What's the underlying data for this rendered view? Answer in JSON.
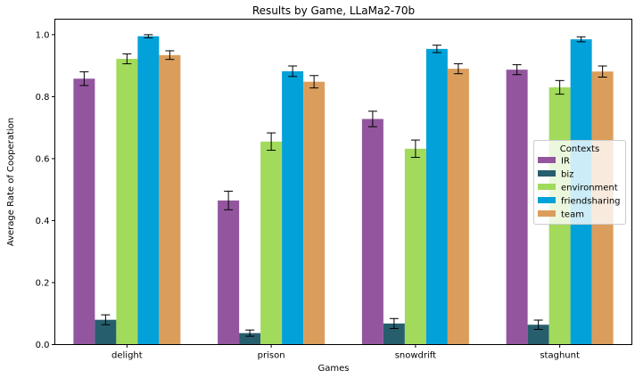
{
  "chart_data": {
    "type": "bar",
    "title": "Results by Game, LLaMa2-70b",
    "xlabel": "Games",
    "ylabel": "Average Rate of Cooperation",
    "ylim": [
      0,
      1.05
    ],
    "yticks": [
      0.0,
      0.2,
      0.4,
      0.6,
      0.8,
      1.0
    ],
    "ytick_labels": [
      "0.0",
      "0.2",
      "0.4",
      "0.6",
      "0.8",
      "1.0"
    ],
    "categories": [
      "delight",
      "prison",
      "snowdrift",
      "staghunt"
    ],
    "grid": false,
    "legend": {
      "title": "Contexts",
      "placement": "center-right"
    },
    "series": [
      {
        "name": "IR",
        "color": "#93569e",
        "values": [
          0.858,
          0.465,
          0.728,
          0.887
        ],
        "errors": [
          0.022,
          0.03,
          0.025,
          0.016
        ]
      },
      {
        "name": "biz",
        "color": "#275e6e",
        "values": [
          0.08,
          0.037,
          0.068,
          0.064
        ],
        "errors": [
          0.016,
          0.01,
          0.016,
          0.015
        ]
      },
      {
        "name": "environment",
        "color": "#a2da5c",
        "values": [
          0.922,
          0.655,
          0.632,
          0.83
        ],
        "errors": [
          0.016,
          0.028,
          0.028,
          0.022
        ]
      },
      {
        "name": "friendsharing",
        "color": "#02a1d9",
        "values": [
          0.995,
          0.882,
          0.954,
          0.985
        ],
        "errors": [
          0.005,
          0.017,
          0.012,
          0.008
        ]
      },
      {
        "name": "team",
        "color": "#db9d5c",
        "values": [
          0.934,
          0.848,
          0.89,
          0.881
        ],
        "errors": [
          0.014,
          0.02,
          0.016,
          0.018
        ]
      }
    ]
  }
}
